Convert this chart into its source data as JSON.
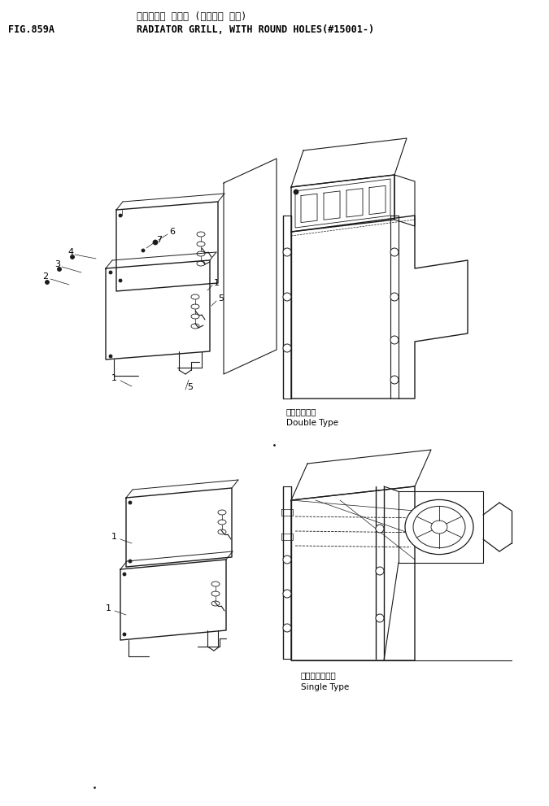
{
  "title_japanese": "ラジエータ グリル (マルアナ ヤキ)",
  "title_english": "RADIATOR GRILL, WITH ROUND HOLES(#15001-)",
  "fig_label": "FIG.859A",
  "double_type_ja": "ダブルタイプ",
  "double_type_en": "Double Type",
  "single_type_ja": "シングルタイプ",
  "single_type_en": "Single Type",
  "bg_color": "#ffffff",
  "line_color": "#1a1a1a",
  "text_color": "#000000",
  "font_size_header": 8.5,
  "font_size_label": 7.5,
  "font_size_partnum": 8
}
